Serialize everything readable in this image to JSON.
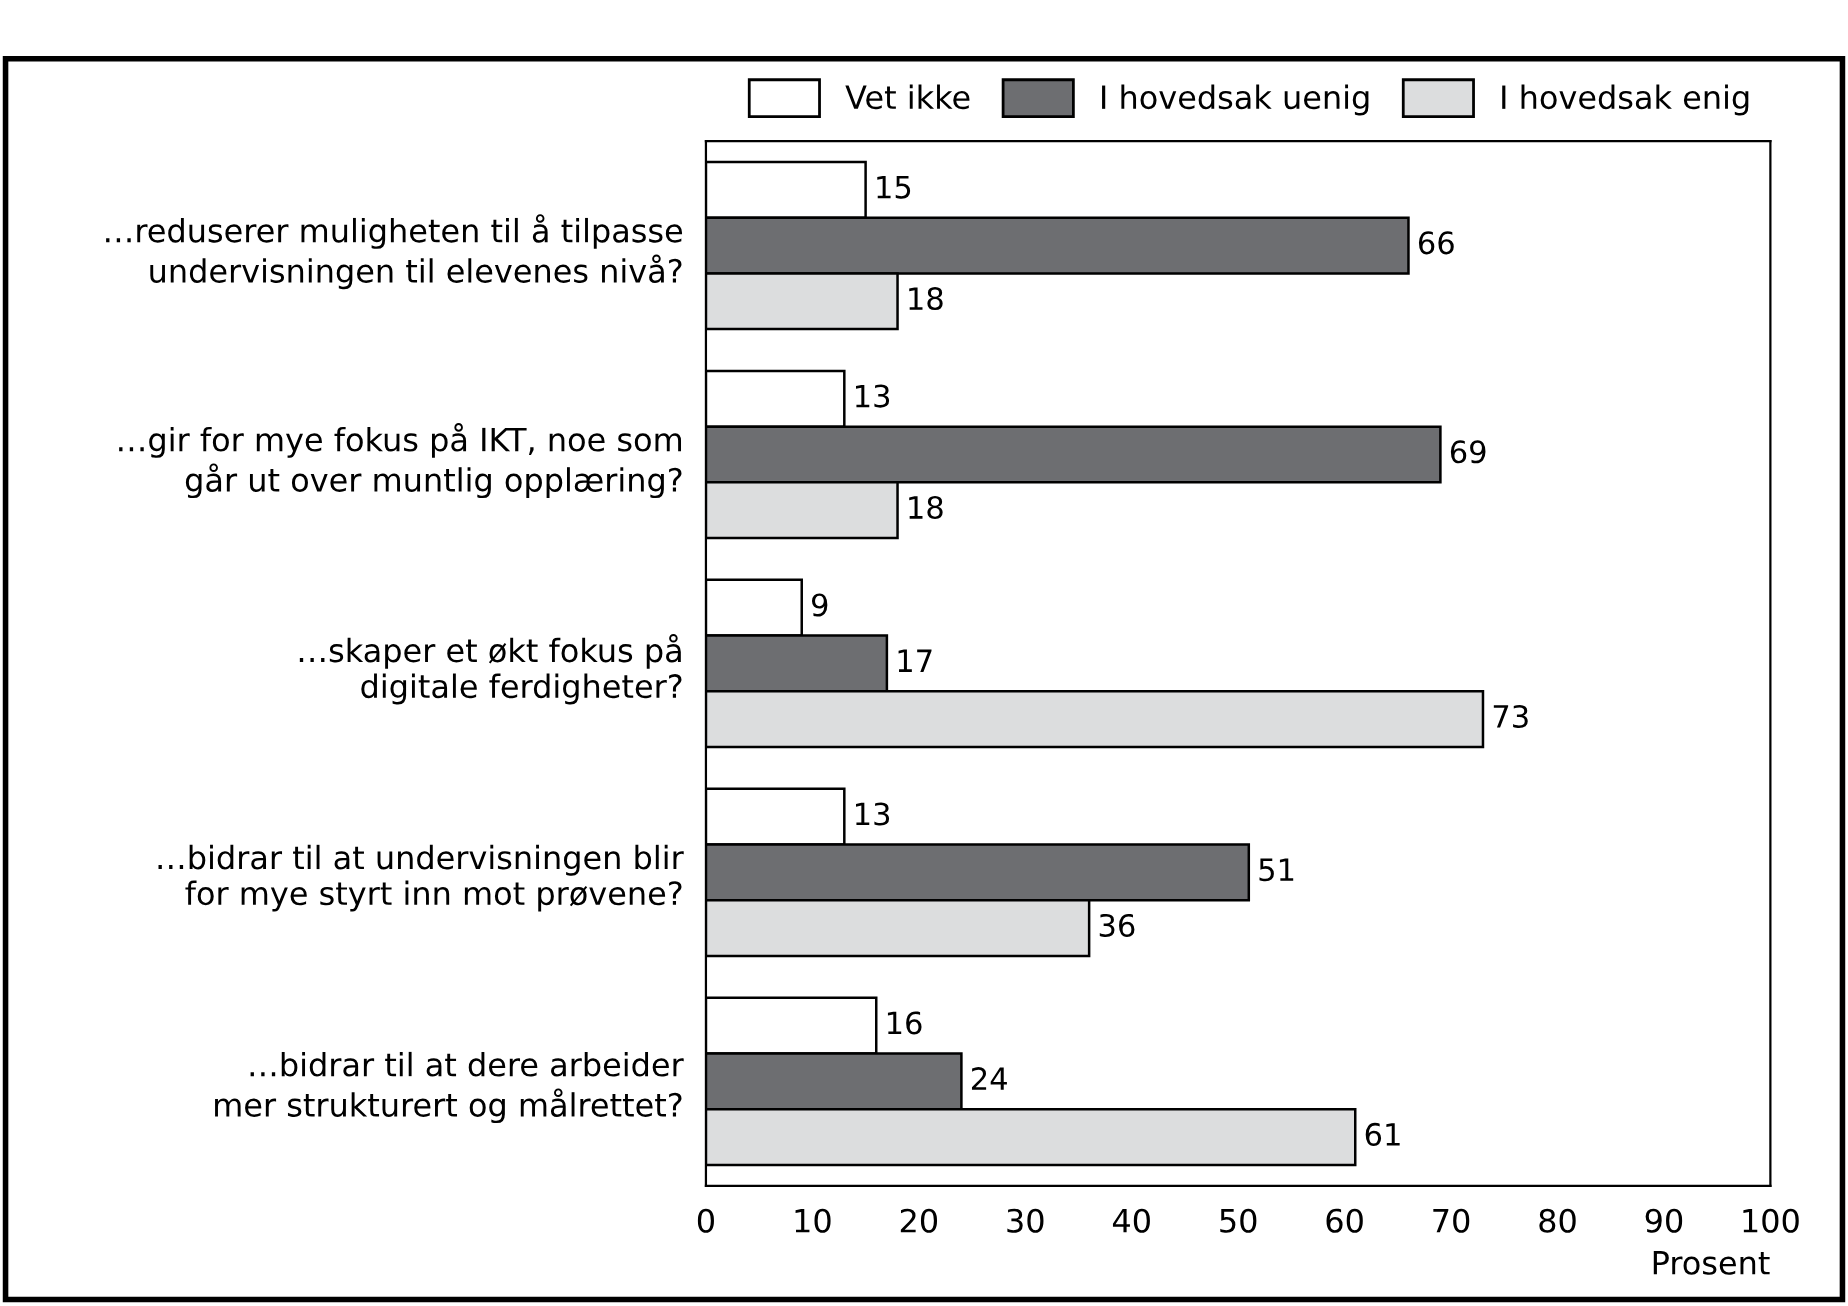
{
  "chart_data": {
    "type": "bar",
    "orientation": "horizontal",
    "categories": [
      "…reduserer muligheten til å tilpasse\nundervisningen til elevenes nivå?",
      "…gir for mye fokus på IKT, noe som\ngår ut over muntlig opplæring?",
      "…skaper et økt fokus på\ndigitale ferdigheter?",
      "…bidrar til at undervisningen blir\nfor mye styrt inn mot prøvene?",
      "…bidrar til at dere arbeider\nmer strukturert og målrettet?"
    ],
    "series": [
      {
        "name": "Vet ikke",
        "color": "#ffffff",
        "values": [
          15,
          13,
          9,
          13,
          16
        ]
      },
      {
        "name": "I hovedsak uenig",
        "color": "#6d6e71",
        "values": [
          66,
          69,
          17,
          51,
          24
        ]
      },
      {
        "name": "I hovedsak enig",
        "color": "#dcddde",
        "values": [
          18,
          18,
          73,
          36,
          61
        ]
      }
    ],
    "xlabel": "Prosent",
    "xlim": [
      0,
      100
    ],
    "xticks": [
      0,
      10,
      20,
      30,
      40,
      50,
      60,
      70,
      80,
      90,
      100
    ],
    "data_labels": true,
    "legend": "top right",
    "grid": false
  }
}
